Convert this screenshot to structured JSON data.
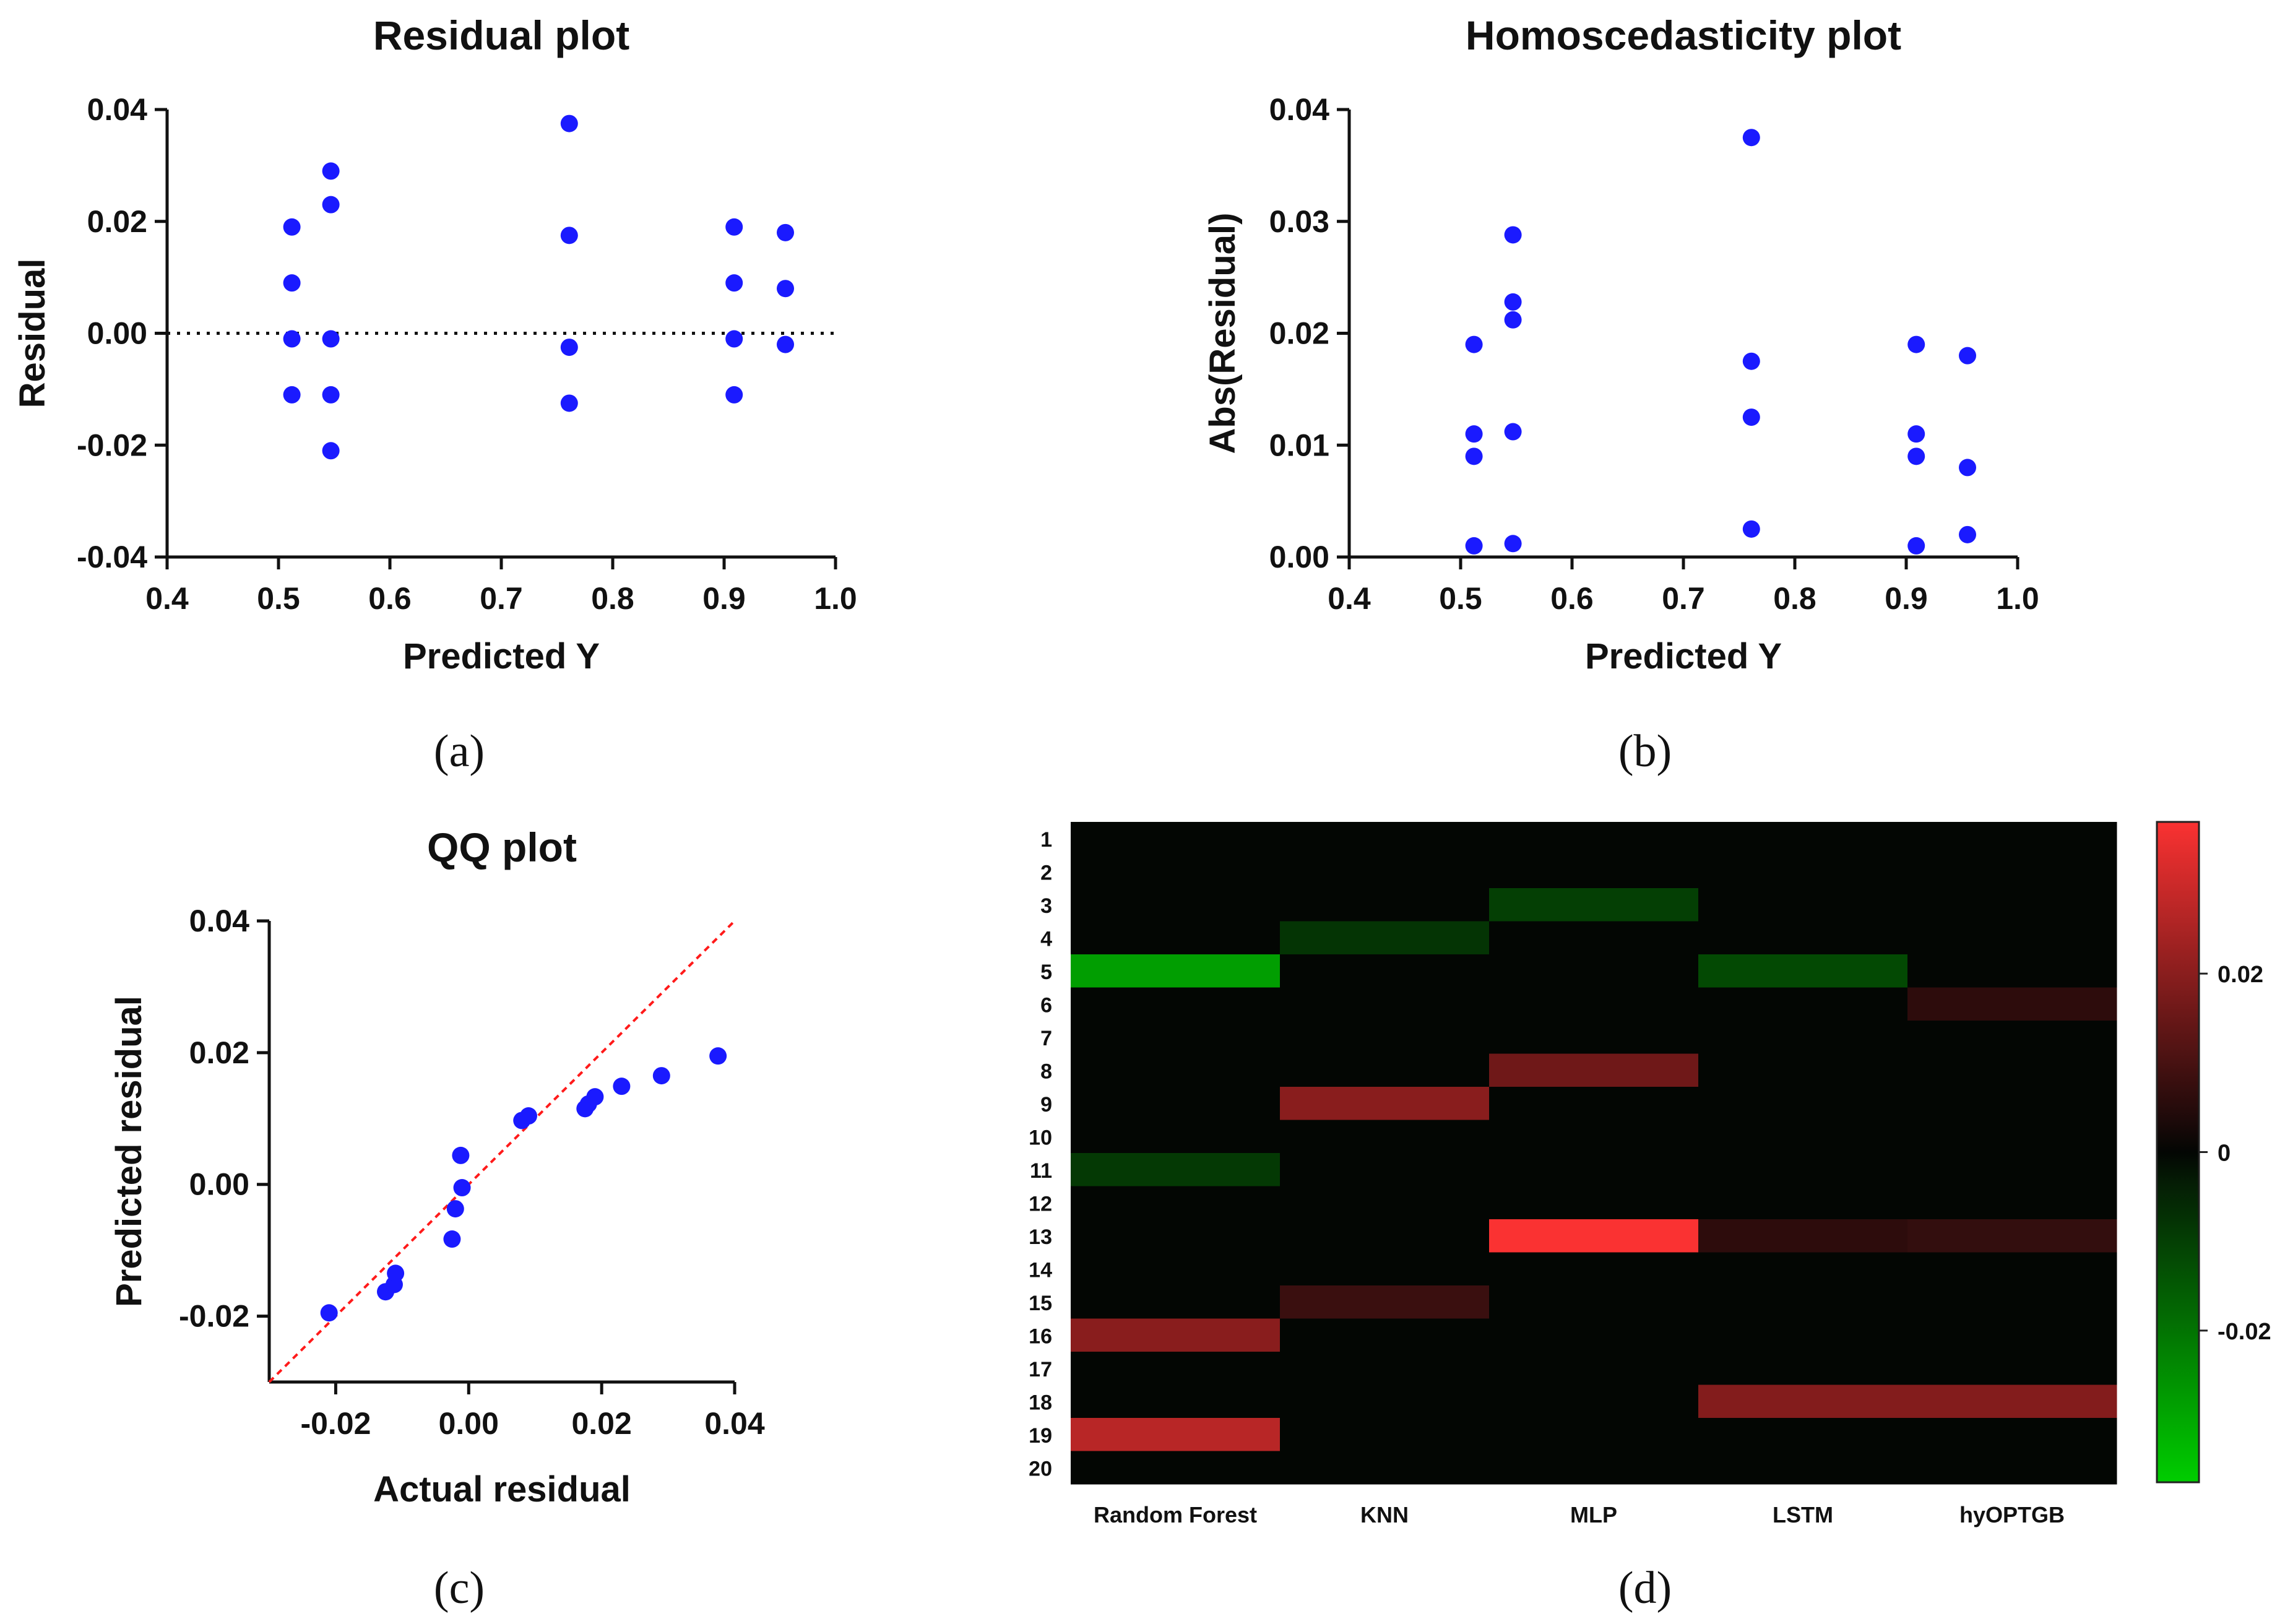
{
  "colors": {
    "point": "#1a1aff",
    "axis": "#111111",
    "qq_line": "#ff1a1a",
    "heat_positive": "#ff3333",
    "heat_zero": "#000000",
    "heat_negative": "#00cc00"
  },
  "panel_labels": [
    "(a)",
    "(b)",
    "(c)",
    "(d)"
  ],
  "chart_data": [
    {
      "id": "a",
      "type": "scatter",
      "title": "Residual plot",
      "xlabel": "Predicted Y",
      "ylabel": "Residual",
      "xlim": [
        0.4,
        1.0
      ],
      "ylim": [
        -0.04,
        0.04
      ],
      "xticks": [
        0.4,
        0.5,
        0.6,
        0.7,
        0.8,
        0.9,
        1.0
      ],
      "xtick_labels": [
        "0.4",
        "0.5",
        "0.6",
        "0.7",
        "0.8",
        "0.9",
        "1.0"
      ],
      "yticks": [
        -0.04,
        -0.02,
        0.0,
        0.02,
        0.04
      ],
      "ytick_labels": [
        "-0.04",
        "-0.02",
        "0.00",
        "0.02",
        "0.04"
      ],
      "reference_line": {
        "y": 0,
        "style": "dotted"
      },
      "points": [
        {
          "x": 0.512,
          "y": 0.019
        },
        {
          "x": 0.512,
          "y": 0.009
        },
        {
          "x": 0.512,
          "y": -0.001
        },
        {
          "x": 0.512,
          "y": -0.011
        },
        {
          "x": 0.547,
          "y": 0.029
        },
        {
          "x": 0.547,
          "y": 0.023
        },
        {
          "x": 0.547,
          "y": -0.001
        },
        {
          "x": 0.547,
          "y": -0.011
        },
        {
          "x": 0.547,
          "y": -0.021
        },
        {
          "x": 0.761,
          "y": 0.0375
        },
        {
          "x": 0.761,
          "y": 0.0175
        },
        {
          "x": 0.761,
          "y": -0.0025
        },
        {
          "x": 0.761,
          "y": -0.0125
        },
        {
          "x": 0.909,
          "y": 0.019
        },
        {
          "x": 0.909,
          "y": 0.009
        },
        {
          "x": 0.909,
          "y": -0.001
        },
        {
          "x": 0.909,
          "y": -0.011
        },
        {
          "x": 0.955,
          "y": 0.018
        },
        {
          "x": 0.955,
          "y": 0.008
        },
        {
          "x": 0.955,
          "y": -0.002
        }
      ]
    },
    {
      "id": "b",
      "type": "scatter",
      "title": "Homoscedasticity plot",
      "xlabel": "Predicted Y",
      "ylabel": "Abs(Residual)",
      "xlim": [
        0.4,
        1.0
      ],
      "ylim": [
        0.0,
        0.04
      ],
      "xticks": [
        0.4,
        0.5,
        0.6,
        0.7,
        0.8,
        0.9,
        1.0
      ],
      "xtick_labels": [
        "0.4",
        "0.5",
        "0.6",
        "0.7",
        "0.8",
        "0.9",
        "1.0"
      ],
      "yticks": [
        0.0,
        0.01,
        0.02,
        0.03,
        0.04
      ],
      "ytick_labels": [
        "0.00",
        "0.01",
        "0.02",
        "0.03",
        "0.04"
      ],
      "points": [
        {
          "x": 0.512,
          "y": 0.019
        },
        {
          "x": 0.512,
          "y": 0.011
        },
        {
          "x": 0.512,
          "y": 0.009
        },
        {
          "x": 0.512,
          "y": 0.001
        },
        {
          "x": 0.547,
          "y": 0.0288
        },
        {
          "x": 0.547,
          "y": 0.0228
        },
        {
          "x": 0.547,
          "y": 0.0212
        },
        {
          "x": 0.547,
          "y": 0.0112
        },
        {
          "x": 0.547,
          "y": 0.0012
        },
        {
          "x": 0.761,
          "y": 0.0375
        },
        {
          "x": 0.761,
          "y": 0.0175
        },
        {
          "x": 0.761,
          "y": 0.0125
        },
        {
          "x": 0.761,
          "y": 0.0025
        },
        {
          "x": 0.909,
          "y": 0.019
        },
        {
          "x": 0.909,
          "y": 0.011
        },
        {
          "x": 0.909,
          "y": 0.009
        },
        {
          "x": 0.909,
          "y": 0.001
        },
        {
          "x": 0.955,
          "y": 0.018
        },
        {
          "x": 0.955,
          "y": 0.008
        },
        {
          "x": 0.955,
          "y": 0.002
        }
      ]
    },
    {
      "id": "c",
      "type": "scatter",
      "title": "QQ plot",
      "xlabel": "Actual residual",
      "ylabel": "Predicted residual",
      "xlim": [
        -0.03,
        0.04
      ],
      "ylim": [
        -0.03,
        0.04
      ],
      "xticks": [
        -0.02,
        0.0,
        0.02,
        0.04
      ],
      "xtick_labels": [
        "-0.02",
        "0.00",
        "0.02",
        "0.04"
      ],
      "yticks": [
        -0.02,
        0.0,
        0.02,
        0.04
      ],
      "ytick_labels": [
        "-0.02",
        "0.00",
        "0.02",
        "0.04"
      ],
      "reference_line": {
        "from": [
          -0.03,
          -0.03
        ],
        "to": [
          0.04,
          0.04
        ],
        "style": "dashed"
      },
      "points": [
        {
          "x": -0.021,
          "y": -0.0195
        },
        {
          "x": -0.0125,
          "y": -0.0163
        },
        {
          "x": -0.0112,
          "y": -0.0152
        },
        {
          "x": -0.011,
          "y": -0.0135
        },
        {
          "x": -0.0025,
          "y": -0.0083
        },
        {
          "x": -0.002,
          "y": -0.0037
        },
        {
          "x": -0.001,
          "y": -0.0005
        },
        {
          "x": -0.0012,
          "y": 0.0044
        },
        {
          "x": 0.008,
          "y": 0.0097
        },
        {
          "x": 0.009,
          "y": 0.0104
        },
        {
          "x": 0.0175,
          "y": 0.0115
        },
        {
          "x": 0.018,
          "y": 0.0122
        },
        {
          "x": 0.019,
          "y": 0.0133
        },
        {
          "x": 0.023,
          "y": 0.0149
        },
        {
          "x": 0.029,
          "y": 0.0165
        },
        {
          "x": 0.0375,
          "y": 0.0195
        }
      ]
    },
    {
      "id": "d",
      "type": "heatmap",
      "columns": [
        "Random Forest",
        "KNN",
        "MLP",
        "LSTM",
        "hyOPTGB"
      ],
      "rows": [
        "1",
        "2",
        "3",
        "4",
        "5",
        "6",
        "7",
        "8",
        "9",
        "10",
        "11",
        "12",
        "13",
        "14",
        "15",
        "16",
        "17",
        "18",
        "19",
        "20"
      ],
      "value_range": [
        -0.037,
        0.037
      ],
      "colorbar_ticks": [
        0.02,
        0,
        -0.02
      ],
      "colorbar_tick_labels": [
        "0.02",
        "0",
        "-0.02"
      ],
      "values": [
        [
          0,
          0,
          0,
          0,
          0
        ],
        [
          0,
          0,
          0,
          0,
          0
        ],
        [
          0,
          0,
          -0.01,
          0,
          0
        ],
        [
          0,
          -0.008,
          0,
          0,
          0
        ],
        [
          -0.028,
          0,
          0,
          -0.012,
          0
        ],
        [
          0,
          0,
          0,
          0,
          0.006
        ],
        [
          0,
          0,
          0,
          0,
          0
        ],
        [
          0,
          0,
          0.016,
          0,
          0
        ],
        [
          0,
          0.02,
          0,
          0,
          0
        ],
        [
          0,
          0,
          0,
          0,
          0
        ],
        [
          -0.009,
          0,
          0,
          0,
          0
        ],
        [
          0,
          0,
          0,
          0,
          0
        ],
        [
          0,
          0,
          0.037,
          0.006,
          0.007
        ],
        [
          0,
          0,
          0,
          0,
          0
        ],
        [
          0,
          0.008,
          0,
          0,
          0
        ],
        [
          0.02,
          0,
          0,
          0,
          0
        ],
        [
          0,
          0,
          0,
          0,
          0
        ],
        [
          0,
          0,
          0,
          0.019,
          0.019
        ],
        [
          0.027,
          0,
          0,
          0,
          0
        ],
        [
          0,
          0,
          0,
          0,
          0
        ]
      ]
    }
  ]
}
